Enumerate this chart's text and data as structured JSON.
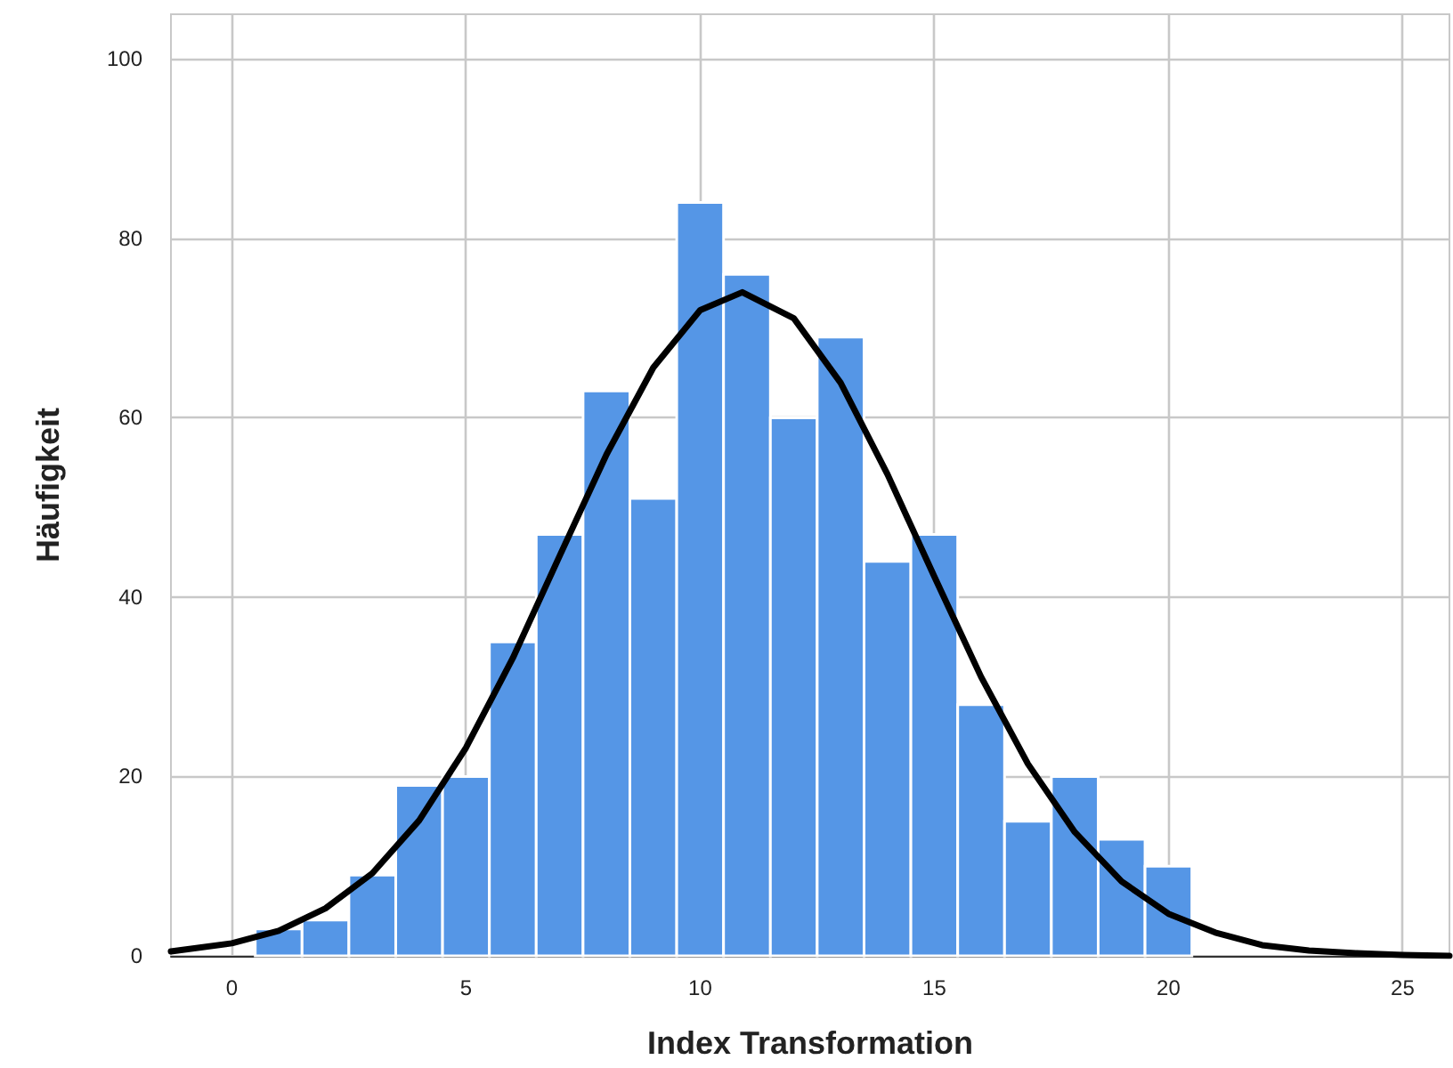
{
  "chart_data": {
    "type": "histogram",
    "xlabel": "Index Transformation",
    "ylabel": "Häufigkeit",
    "xlim": [
      -1.3,
      26
    ],
    "xticks": [
      0,
      5,
      10,
      15,
      20,
      25
    ],
    "ylim": [
      0,
      105
    ],
    "yticks": [
      0,
      20,
      40,
      60,
      80,
      100
    ],
    "grid": true,
    "series": [
      {
        "type": "histogram",
        "color": "#5596e6",
        "bins": [
          0.5,
          1.5,
          2.5,
          3.5,
          4.5,
          5.5,
          6.5,
          7.5,
          8.5,
          9.5,
          10.5,
          11.5,
          12.5,
          13.5,
          14.5,
          15.5,
          16.5,
          17.5,
          18.5,
          19.5,
          20.5
        ],
        "values": [
          3,
          4,
          9,
          19,
          20,
          35,
          47,
          63,
          51,
          84,
          76,
          60,
          69,
          44,
          47,
          28,
          15,
          20,
          13,
          10
        ]
      },
      {
        "type": "line",
        "color": "#000000",
        "marker": "none",
        "x": [
          -1.3,
          0,
          1,
          2,
          3,
          4,
          5,
          6,
          7,
          8,
          9,
          10,
          10.9,
          12,
          13,
          14,
          15,
          16,
          17,
          18,
          19,
          20,
          21,
          22,
          23,
          24,
          25,
          26
        ],
        "values": [
          0.5,
          1.4,
          2.8,
          5.3,
          9.2,
          15.1,
          23.2,
          33.2,
          44.6,
          55.9,
          65.6,
          72,
          74,
          71.1,
          63.9,
          53.7,
          42.3,
          31.1,
          21.4,
          13.8,
          8.3,
          4.7,
          2.6,
          1.2,
          0.6,
          0.3,
          0.1,
          0
        ]
      }
    ]
  }
}
